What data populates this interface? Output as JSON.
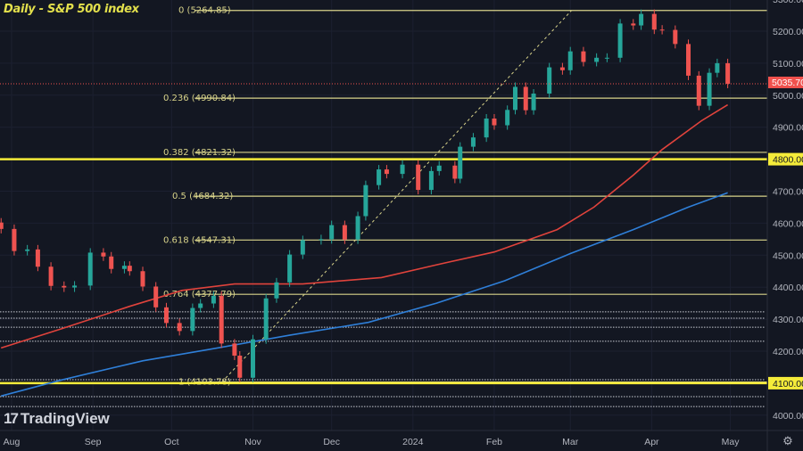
{
  "header": {
    "title": "Daily - S&P 500 index"
  },
  "branding": {
    "logo_mark": "17",
    "logo_text": "TradingView"
  },
  "colors": {
    "background": "#131722",
    "up": "#26a69a",
    "down": "#ef5350",
    "ma_fast": "#e0433c",
    "ma_slow": "#2f7fd8",
    "fib": "#d8d38a",
    "key_level": "#f5ec3a",
    "last_price": "#f0514d"
  },
  "chart_data": {
    "type": "candlestick",
    "title": "Daily - S&P 500 index",
    "ylim": [
      3980,
      5300
    ],
    "y_ticks": [
      4000,
      4100,
      4200,
      4300,
      4400,
      4500,
      4600,
      4700,
      4800,
      4900,
      5000,
      5100,
      5200,
      5300
    ],
    "x_ticks": [
      {
        "label": "Aug",
        "date": "2023-08-01"
      },
      {
        "label": "Sep",
        "date": "2023-09-01"
      },
      {
        "label": "Oct",
        "date": "2023-10-01"
      },
      {
        "label": "Nov",
        "date": "2023-11-01"
      },
      {
        "label": "Dec",
        "date": "2023-12-01"
      },
      {
        "label": "2024",
        "date": "2024-01-01"
      },
      {
        "label": "Feb",
        "date": "2024-02-01"
      },
      {
        "label": "Mar",
        "date": "2024-03-01"
      },
      {
        "label": "Apr",
        "date": "2024-04-01"
      },
      {
        "label": "May",
        "date": "2024-05-01"
      }
    ],
    "last_price": {
      "value": 5035.7,
      "label": "5035.70"
    },
    "key_levels": [
      {
        "value": 4800,
        "label": "4800.00"
      },
      {
        "value": 4100,
        "label": "4100.00"
      }
    ],
    "dotted_levels": [
      4323,
      4303,
      4275,
      4231,
      4111,
      4058,
      4027
    ],
    "fib_levels": [
      {
        "ratio": "0",
        "value": 5264.85,
        "label": "0 (5264.85)"
      },
      {
        "ratio": "0.236",
        "value": 4990.84,
        "label": "0.236 (4990.84)"
      },
      {
        "ratio": "0.382",
        "value": 4821.32,
        "label": "0.382 (4821.32)"
      },
      {
        "ratio": "0.5",
        "value": 4684.32,
        "label": "0.5 (4684.32)"
      },
      {
        "ratio": "0.618",
        "value": 4547.31,
        "label": "0.618 (4547.31)"
      },
      {
        "ratio": "0.764",
        "value": 4377.79,
        "label": "0.764 (4377.79)"
      },
      {
        "ratio": "1",
        "value": 4103.78,
        "label": "1 (4103.78)"
      }
    ],
    "fib_trendline": [
      {
        "date": "2023-10-27",
        "value": 4103.78
      },
      {
        "date": "2024-03-28",
        "value": 5264.85
      }
    ],
    "candles": [
      [
        "2023-07-28",
        4582
      ],
      [
        "2023-08-02",
        4513
      ],
      [
        "2023-08-07",
        4518
      ],
      [
        "2023-08-11",
        4464
      ],
      [
        "2023-08-16",
        4404
      ],
      [
        "2023-08-21",
        4399
      ],
      [
        "2023-08-25",
        4405
      ],
      [
        "2023-08-31",
        4508
      ],
      [
        "2023-09-05",
        4496
      ],
      [
        "2023-09-08",
        4457
      ],
      [
        "2023-09-13",
        4467
      ],
      [
        "2023-09-15",
        4450
      ],
      [
        "2023-09-20",
        4402
      ],
      [
        "2023-09-25",
        4337
      ],
      [
        "2023-09-29",
        4288
      ],
      [
        "2023-10-04",
        4263
      ],
      [
        "2023-10-09",
        4335
      ],
      [
        "2023-10-12",
        4349
      ],
      [
        "2023-10-17",
        4373
      ],
      [
        "2023-10-20",
        4224
      ],
      [
        "2023-10-25",
        4186
      ],
      [
        "2023-10-27",
        4117
      ],
      [
        "2023-11-01",
        4237
      ],
      [
        "2023-11-06",
        4365
      ],
      [
        "2023-11-10",
        4415
      ],
      [
        "2023-11-15",
        4502
      ],
      [
        "2023-11-20",
        4547
      ],
      [
        "2023-11-27",
        4550
      ],
      [
        "2023-12-01",
        4594
      ],
      [
        "2023-12-06",
        4549
      ],
      [
        "2023-12-11",
        4622
      ],
      [
        "2023-12-14",
        4719
      ],
      [
        "2023-12-19",
        4768
      ],
      [
        "2023-12-22",
        4754
      ],
      [
        "2023-12-28",
        4783
      ],
      [
        "2024-01-03",
        4704
      ],
      [
        "2024-01-08",
        4763
      ],
      [
        "2024-01-11",
        4780
      ],
      [
        "2024-01-17",
        4739
      ],
      [
        "2024-01-19",
        4839
      ],
      [
        "2024-01-24",
        4868
      ],
      [
        "2024-01-29",
        4927
      ],
      [
        "2024-02-01",
        4906
      ],
      [
        "2024-02-06",
        4954
      ],
      [
        "2024-02-09",
        5026
      ],
      [
        "2024-02-13",
        4953
      ],
      [
        "2024-02-16",
        5005
      ],
      [
        "2024-02-22",
        5087
      ],
      [
        "2024-02-27",
        5078
      ],
      [
        "2024-03-01",
        5137
      ],
      [
        "2024-03-06",
        5104
      ],
      [
        "2024-03-11",
        5117
      ],
      [
        "2024-03-15",
        5117
      ],
      [
        "2024-03-20",
        5224
      ],
      [
        "2024-03-25",
        5218
      ],
      [
        "2024-03-28",
        5254
      ],
      [
        "2024-04-02",
        5205
      ],
      [
        "2024-04-05",
        5204
      ],
      [
        "2024-04-10",
        5160
      ],
      [
        "2024-04-15",
        5061
      ],
      [
        "2024-04-19",
        4967
      ],
      [
        "2024-04-23",
        5070
      ],
      [
        "2024-04-26",
        5100
      ],
      [
        "2024-04-30",
        5035.7
      ]
    ],
    "series": [
      {
        "key": "ma_fast",
        "points": [
          [
            "2023-07-28",
            4210
          ],
          [
            "2023-08-20",
            4270
          ],
          [
            "2023-09-15",
            4340
          ],
          [
            "2023-10-05",
            4390
          ],
          [
            "2023-10-25",
            4410
          ],
          [
            "2023-11-20",
            4410
          ],
          [
            "2023-12-20",
            4430
          ],
          [
            "2024-01-10",
            4470
          ],
          [
            "2024-02-01",
            4510
          ],
          [
            "2024-02-25",
            4580
          ],
          [
            "2024-03-10",
            4650
          ],
          [
            "2024-03-25",
            4750
          ],
          [
            "2024-04-05",
            4830
          ],
          [
            "2024-04-20",
            4920
          ],
          [
            "2024-04-30",
            4970
          ]
        ]
      },
      {
        "key": "ma_slow",
        "points": [
          [
            "2023-07-28",
            4060
          ],
          [
            "2023-08-20",
            4110
          ],
          [
            "2023-09-20",
            4170
          ],
          [
            "2023-10-15",
            4205
          ],
          [
            "2023-11-15",
            4250
          ],
          [
            "2023-12-15",
            4290
          ],
          [
            "2024-01-10",
            4350
          ],
          [
            "2024-02-05",
            4420
          ],
          [
            "2024-03-01",
            4505
          ],
          [
            "2024-03-25",
            4580
          ],
          [
            "2024-04-15",
            4650
          ],
          [
            "2024-04-30",
            4695
          ]
        ]
      }
    ]
  }
}
